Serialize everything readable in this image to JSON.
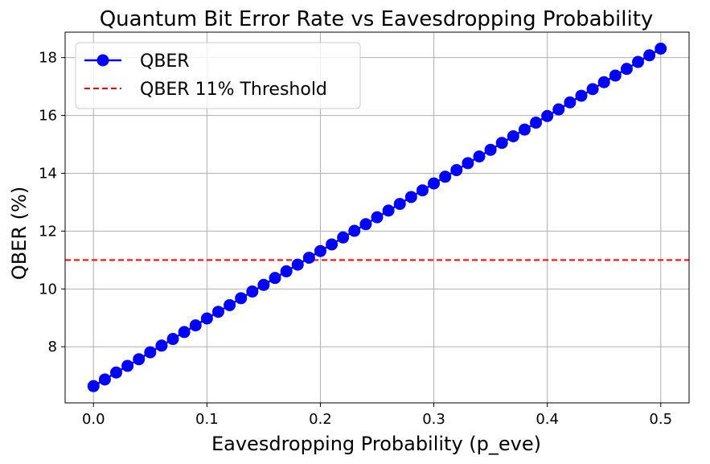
{
  "chart_data": {
    "type": "line",
    "title": "Quantum Bit Error Rate vs Eavesdropping Probability",
    "xlabel": "Eavesdropping Probability (p_eve)",
    "ylabel": "QBER (%)",
    "xlim": [
      -0.025,
      0.525
    ],
    "ylim": [
      6.06,
      18.88
    ],
    "xticks": [
      0.0,
      0.1,
      0.2,
      0.3,
      0.4,
      0.5
    ],
    "xtick_labels": [
      "0.0",
      "0.1",
      "0.2",
      "0.3",
      "0.4",
      "0.5"
    ],
    "yticks": [
      8,
      10,
      12,
      14,
      16,
      18
    ],
    "ytick_labels": [
      "8",
      "10",
      "12",
      "14",
      "16",
      "18"
    ],
    "grid": true,
    "legend_position": "top-left",
    "series": [
      {
        "name": "QBER",
        "color": "#0000ff",
        "marker": "circle",
        "x": [
          0.0,
          0.01,
          0.02,
          0.03,
          0.04,
          0.05,
          0.06,
          0.07,
          0.08,
          0.09,
          0.1,
          0.11,
          0.12,
          0.13,
          0.14,
          0.15,
          0.16,
          0.17,
          0.18,
          0.19,
          0.2,
          0.21,
          0.22,
          0.23,
          0.24,
          0.25,
          0.26,
          0.27,
          0.28,
          0.29,
          0.3,
          0.31,
          0.32,
          0.33,
          0.34,
          0.35,
          0.36,
          0.37,
          0.38,
          0.39,
          0.4,
          0.41,
          0.42,
          0.43,
          0.44,
          0.45,
          0.46,
          0.47,
          0.48,
          0.49,
          0.5
        ],
        "y": [
          6.64,
          6.87,
          7.11,
          7.34,
          7.57,
          7.81,
          8.04,
          8.27,
          8.51,
          8.74,
          8.98,
          9.21,
          9.44,
          9.68,
          9.91,
          10.14,
          10.38,
          10.61,
          10.84,
          11.08,
          11.31,
          11.54,
          11.78,
          12.01,
          12.24,
          12.48,
          12.71,
          12.94,
          13.18,
          13.41,
          13.65,
          13.88,
          14.11,
          14.35,
          14.58,
          14.81,
          15.05,
          15.28,
          15.51,
          15.75,
          15.98,
          16.21,
          16.45,
          16.68,
          16.91,
          17.15,
          17.38,
          17.61,
          17.85,
          18.08,
          18.31
        ]
      },
      {
        "name": "QBER 11% Threshold",
        "color": "#ff0000",
        "style": "dashed",
        "y_constant": 11
      }
    ]
  }
}
